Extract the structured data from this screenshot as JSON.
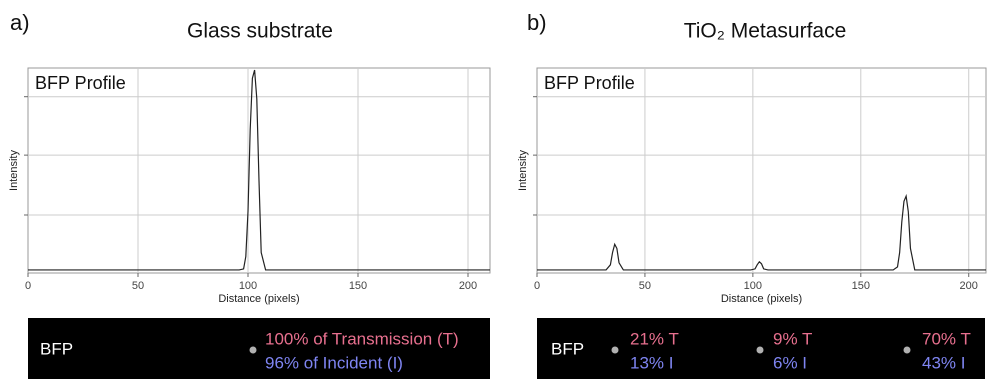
{
  "chart_data": [
    {
      "type": "line",
      "panel_label": "a)",
      "title": "Glass substrate",
      "annotation": "BFP Profile",
      "xlabel": "Distance (pixels)",
      "ylabel": "Intensity",
      "color": "#222222",
      "x": [
        0,
        96,
        98,
        99,
        100,
        101,
        102,
        103,
        104,
        105,
        106,
        108,
        210
      ],
      "values": [
        0.015,
        0.015,
        0.02,
        0.08,
        0.3,
        0.7,
        0.95,
        0.99,
        0.85,
        0.45,
        0.1,
        0.015,
        0.015
      ],
      "xlim": [
        0,
        210
      ],
      "ylim": [
        0,
        1
      ],
      "xticks": [
        0,
        50,
        100,
        150,
        200
      ],
      "ygrid": [
        0.283,
        0.575,
        0.86
      ],
      "grid": true,
      "strip": {
        "label": "BFP",
        "items": [
          {
            "top": "100% of Transmission (T)",
            "bottom": "96% of Incident (I)"
          }
        ]
      }
    },
    {
      "type": "line",
      "panel_label": "b)",
      "title": "TiO₂ Metasurface",
      "annotation": "BFP Profile",
      "xlabel": "Distance (pixels)",
      "ylabel": "Intensity",
      "color": "#222222",
      "x": [
        0,
        32,
        34,
        35,
        36,
        37,
        38,
        40,
        99,
        101,
        102,
        103,
        104,
        105,
        107,
        165,
        167,
        168,
        169,
        170,
        171,
        172,
        173,
        175,
        208
      ],
      "values": [
        0.015,
        0.015,
        0.04,
        0.1,
        0.14,
        0.12,
        0.05,
        0.015,
        0.015,
        0.02,
        0.04,
        0.055,
        0.045,
        0.02,
        0.015,
        0.015,
        0.03,
        0.1,
        0.25,
        0.35,
        0.375,
        0.3,
        0.12,
        0.015,
        0.015
      ],
      "xlim": [
        0,
        208
      ],
      "ylim": [
        0,
        1
      ],
      "xticks": [
        0,
        50,
        100,
        150,
        200
      ],
      "ygrid": [
        0.283,
        0.575,
        0.86
      ],
      "grid": true,
      "strip": {
        "label": "BFP",
        "items": [
          {
            "top": "21% T",
            "bottom": "13% I"
          },
          {
            "top": "9% T",
            "bottom": "6% I"
          },
          {
            "top": "70% T",
            "bottom": "43% I"
          }
        ]
      }
    }
  ]
}
